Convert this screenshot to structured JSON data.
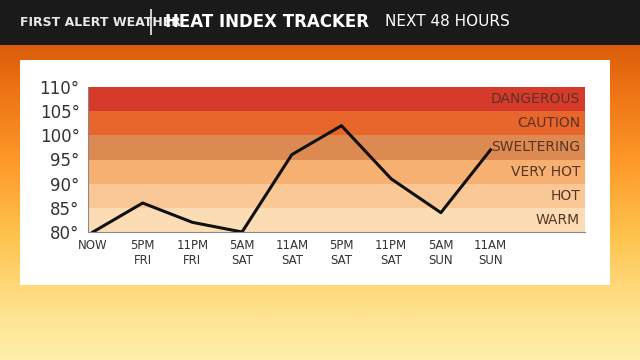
{
  "chart_data": {
    "type": "line",
    "brand": "FIRST ALERT WEATHER",
    "title": "HEAT INDEX TRACKER",
    "subtitle": "NEXT 48 HOURS",
    "categories": [
      "NOW",
      "5PM\nFRI",
      "11PM\nFRI",
      "5AM\nSAT",
      "11AM\nSAT",
      "5PM\nSAT",
      "11PM\nSAT",
      "5AM\nSUN",
      "11AM\nSUN"
    ],
    "values": [
      80,
      86,
      82,
      80,
      96,
      102,
      91,
      84,
      97
    ],
    "color": "#111111",
    "line_style": "solid",
    "ylim": [
      80,
      110
    ],
    "yticks": [
      {
        "value": 80,
        "label": "80°"
      },
      {
        "value": 85,
        "label": "85°"
      },
      {
        "value": 90,
        "label": "90°"
      },
      {
        "value": 95,
        "label": "95°"
      },
      {
        "value": 100,
        "label": "100°"
      },
      {
        "value": 105,
        "label": "105°"
      },
      {
        "value": 110,
        "label": "110°"
      }
    ],
    "grid": false,
    "bands": [
      {
        "name": "WARM",
        "from": 80,
        "to": 85,
        "color": "#fcdcb4"
      },
      {
        "name": "HOT",
        "from": 85,
        "to": 90,
        "color": "#f9c896"
      },
      {
        "name": "VERY HOT",
        "from": 90,
        "to": 95,
        "color": "#f5b072"
      },
      {
        "name": "SWELTERING",
        "from": 95,
        "to": 100,
        "color": "#dd8a52"
      },
      {
        "name": "CAUTION",
        "from": 100,
        "to": 105,
        "color": "#e8652c"
      },
      {
        "name": "DANGEROUS",
        "from": 105,
        "to": 110,
        "color": "#d63a2a"
      }
    ]
  }
}
